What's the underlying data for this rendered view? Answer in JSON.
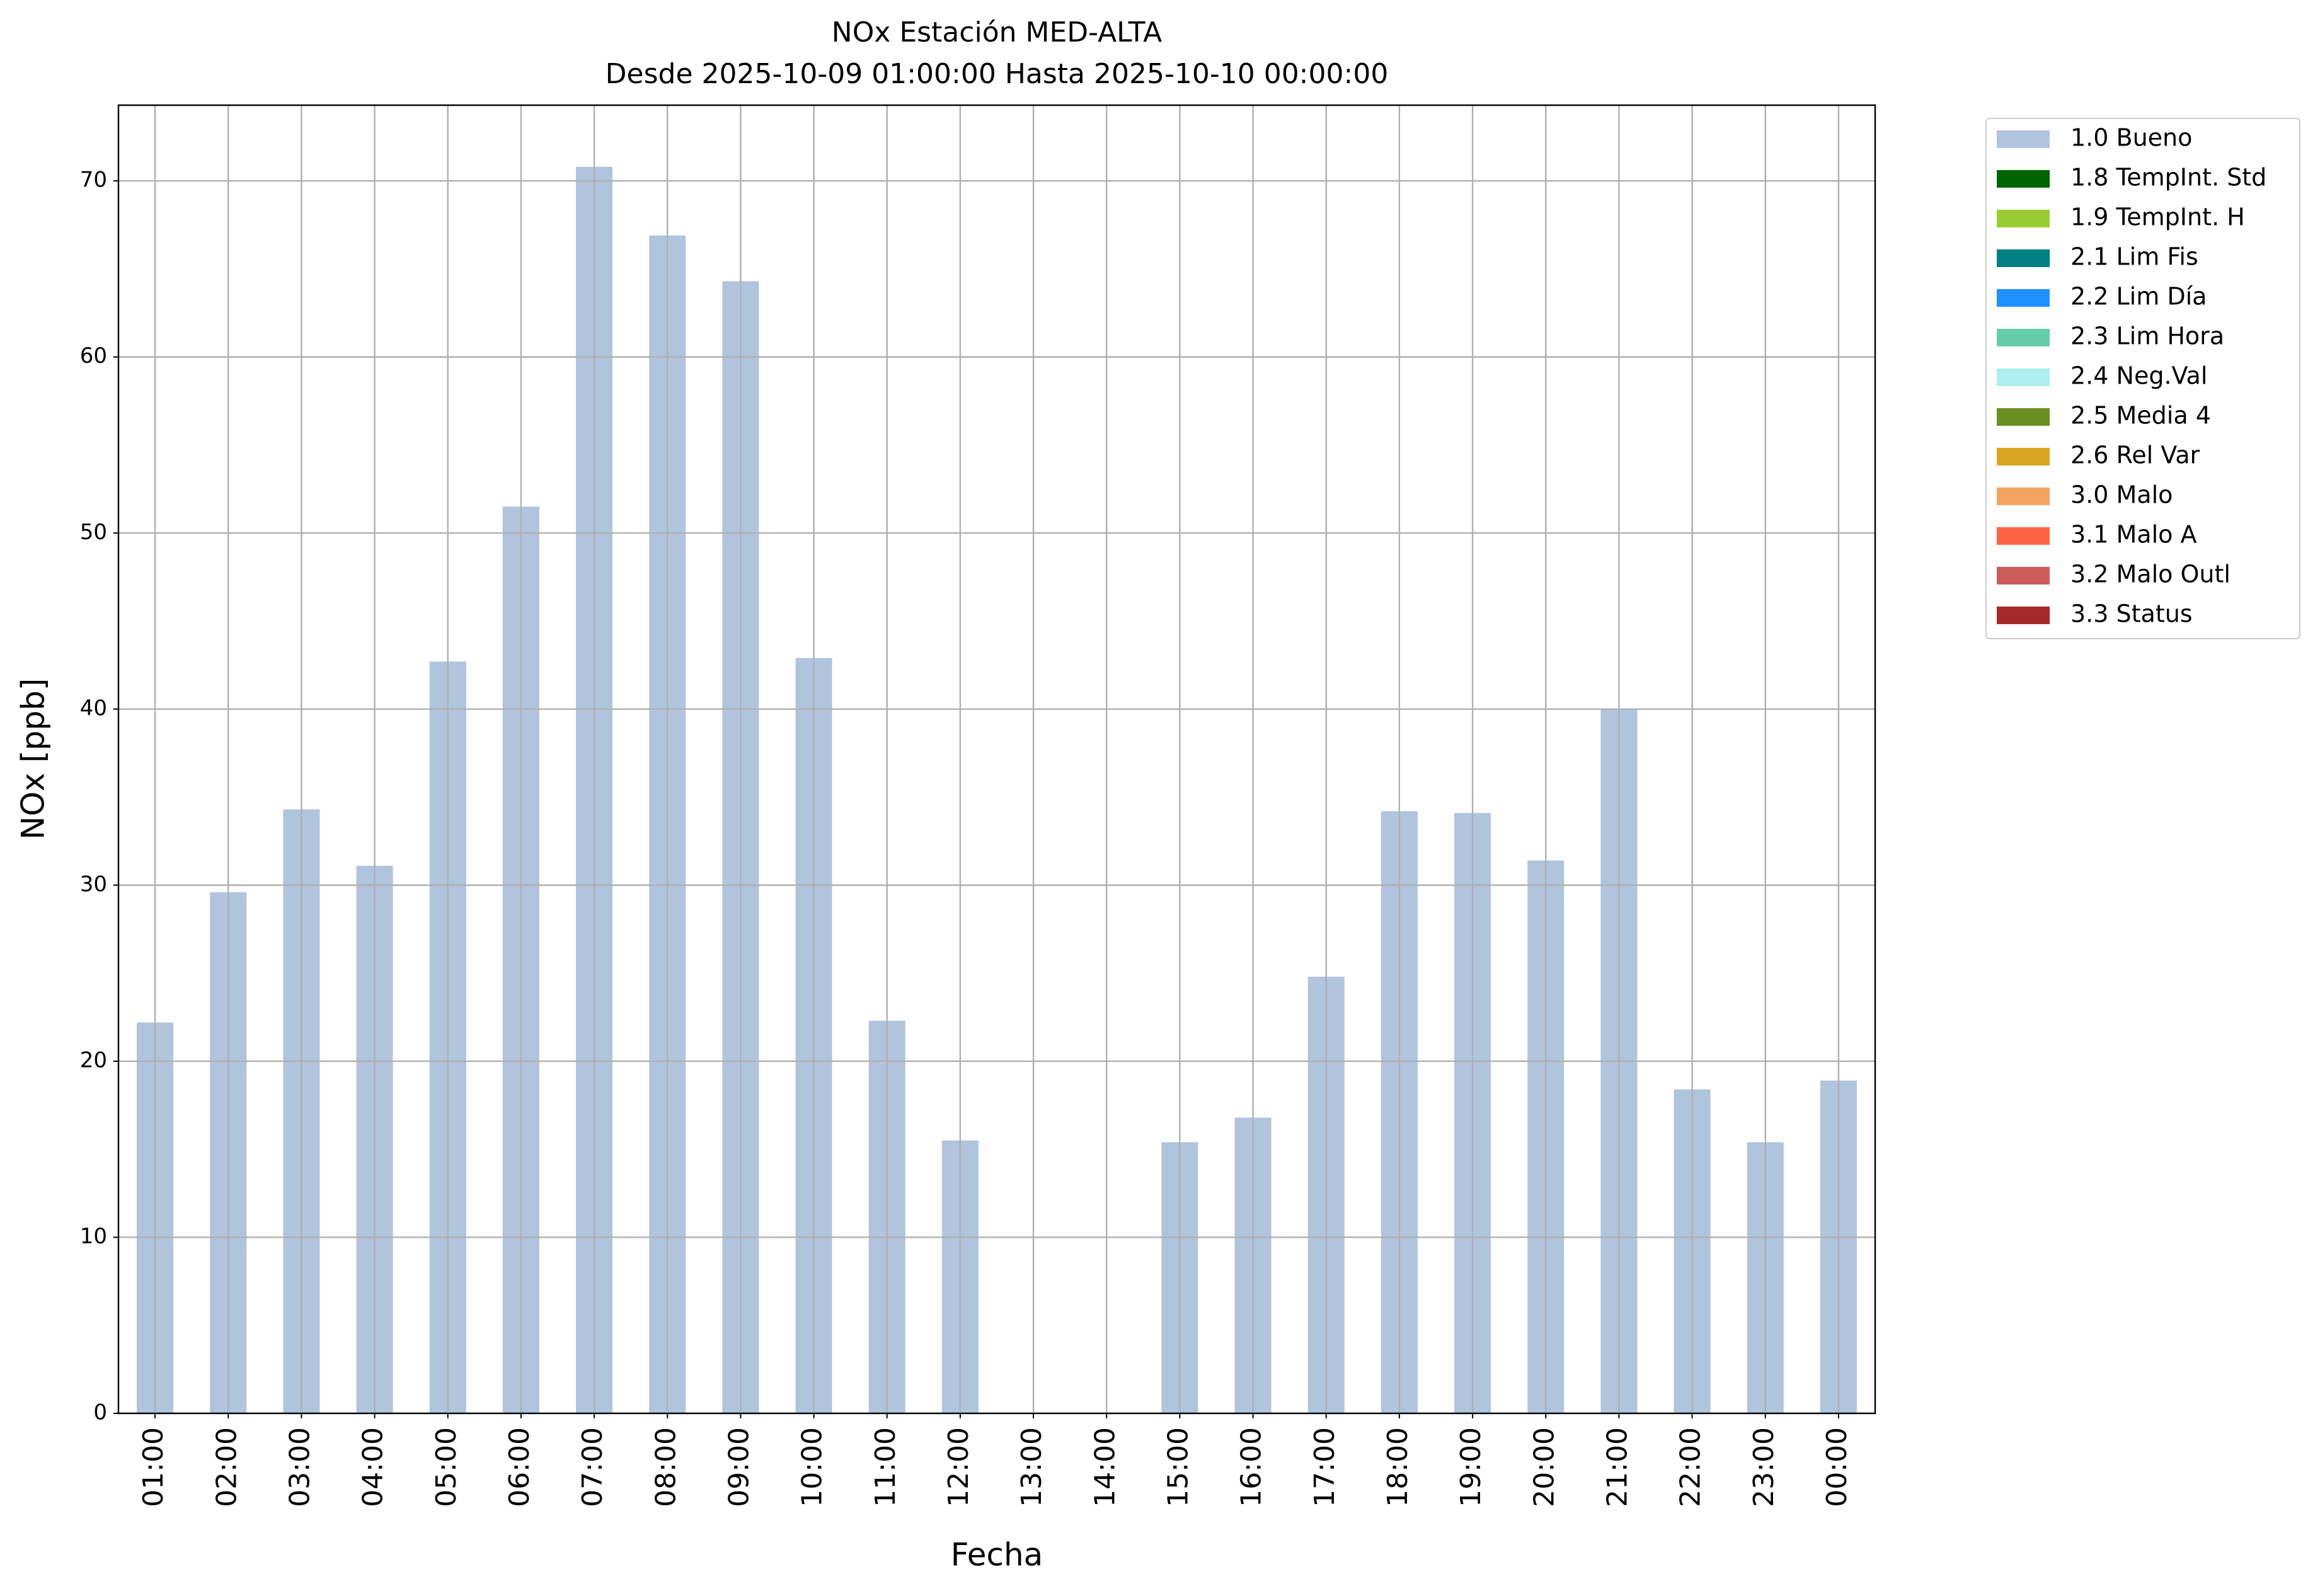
{
  "chart_data": {
    "type": "bar",
    "title": "NOx Estación MED-ALTA",
    "subtitle": "Desde 2025-10-09 01:00:00 Hasta 2025-10-10 00:00:00",
    "xlabel": "Fecha",
    "ylabel": "NOx [ppb]",
    "categories": [
      "01:00",
      "02:00",
      "03:00",
      "04:00",
      "05:00",
      "06:00",
      "07:00",
      "08:00",
      "09:00",
      "10:00",
      "11:00",
      "12:00",
      "13:00",
      "14:00",
      "15:00",
      "16:00",
      "17:00",
      "18:00",
      "19:00",
      "20:00",
      "21:00",
      "22:00",
      "23:00",
      "00:00"
    ],
    "series": [
      {
        "name": "1.0 Bueno",
        "color": "#b0c4de",
        "values": [
          22.2,
          29.6,
          34.3,
          31.1,
          42.7,
          51.5,
          70.8,
          66.9,
          64.3,
          42.9,
          22.3,
          15.5,
          null,
          null,
          15.4,
          16.8,
          24.8,
          34.2,
          34.1,
          31.4,
          40.0,
          18.4,
          15.4,
          18.9
        ]
      },
      {
        "name": "1.8 TempInt. Std",
        "color": "#006400",
        "values": [
          null,
          null,
          null,
          null,
          null,
          null,
          null,
          null,
          null,
          null,
          null,
          null,
          null,
          null,
          null,
          null,
          null,
          null,
          null,
          null,
          null,
          null,
          null,
          null
        ]
      },
      {
        "name": "1.9 TempInt. H",
        "color": "#9acd32",
        "values": [
          null,
          null,
          null,
          null,
          null,
          null,
          null,
          null,
          null,
          null,
          null,
          null,
          null,
          null,
          null,
          null,
          null,
          null,
          null,
          null,
          null,
          null,
          null,
          null
        ]
      },
      {
        "name": "2.1 Lim Fis",
        "color": "#008080",
        "values": [
          null,
          null,
          null,
          null,
          null,
          null,
          null,
          null,
          null,
          null,
          null,
          null,
          null,
          null,
          null,
          null,
          null,
          null,
          null,
          null,
          null,
          null,
          null,
          null
        ]
      },
      {
        "name": "2.2 Lim Día",
        "color": "#1e90ff",
        "values": [
          null,
          null,
          null,
          null,
          null,
          null,
          null,
          null,
          null,
          null,
          null,
          null,
          null,
          null,
          null,
          null,
          null,
          null,
          null,
          null,
          null,
          null,
          null,
          null
        ]
      },
      {
        "name": "2.3 Lim Hora",
        "color": "#66cdaa",
        "values": [
          null,
          null,
          null,
          null,
          null,
          null,
          null,
          null,
          null,
          null,
          null,
          null,
          null,
          null,
          null,
          null,
          null,
          null,
          null,
          null,
          null,
          null,
          null,
          null
        ]
      },
      {
        "name": "2.4 Neg.Val",
        "color": "#afeeee",
        "values": [
          null,
          null,
          null,
          null,
          null,
          null,
          null,
          null,
          null,
          null,
          null,
          null,
          null,
          null,
          null,
          null,
          null,
          null,
          null,
          null,
          null,
          null,
          null,
          null
        ]
      },
      {
        "name": "2.5 Media 4",
        "color": "#6b8e23",
        "values": [
          null,
          null,
          null,
          null,
          null,
          null,
          null,
          null,
          null,
          null,
          null,
          null,
          null,
          null,
          null,
          null,
          null,
          null,
          null,
          null,
          null,
          null,
          null,
          null
        ]
      },
      {
        "name": "2.6 Rel Var",
        "color": "#daa520",
        "values": [
          null,
          null,
          null,
          null,
          null,
          null,
          null,
          null,
          null,
          null,
          null,
          null,
          null,
          null,
          null,
          null,
          null,
          null,
          null,
          null,
          null,
          null,
          null,
          null
        ]
      },
      {
        "name": "3.0 Malo",
        "color": "#f4a460",
        "values": [
          null,
          null,
          null,
          null,
          null,
          null,
          null,
          null,
          null,
          null,
          null,
          null,
          null,
          null,
          null,
          null,
          null,
          null,
          null,
          null,
          null,
          null,
          null,
          null
        ]
      },
      {
        "name": "3.1 Malo A",
        "color": "#ff6347",
        "values": [
          null,
          null,
          null,
          null,
          null,
          null,
          null,
          null,
          null,
          null,
          null,
          null,
          null,
          null,
          null,
          null,
          null,
          null,
          null,
          null,
          null,
          null,
          null,
          null
        ]
      },
      {
        "name": "3.2 Malo Outl",
        "color": "#cd5c5c",
        "values": [
          null,
          null,
          null,
          null,
          null,
          null,
          null,
          null,
          null,
          null,
          null,
          null,
          null,
          null,
          null,
          null,
          null,
          null,
          null,
          null,
          null,
          null,
          null,
          null
        ]
      },
      {
        "name": "3.3 Status",
        "color": "#a52a2a",
        "values": [
          null,
          null,
          null,
          null,
          null,
          null,
          null,
          null,
          null,
          null,
          null,
          null,
          null,
          null,
          null,
          null,
          null,
          null,
          null,
          null,
          null,
          null,
          null,
          null
        ]
      }
    ],
    "ylim": [
      0,
      74.3
    ],
    "yticks": [
      0,
      10,
      20,
      30,
      40,
      50,
      60,
      70
    ],
    "grid": true,
    "legend": "outside-right"
  }
}
